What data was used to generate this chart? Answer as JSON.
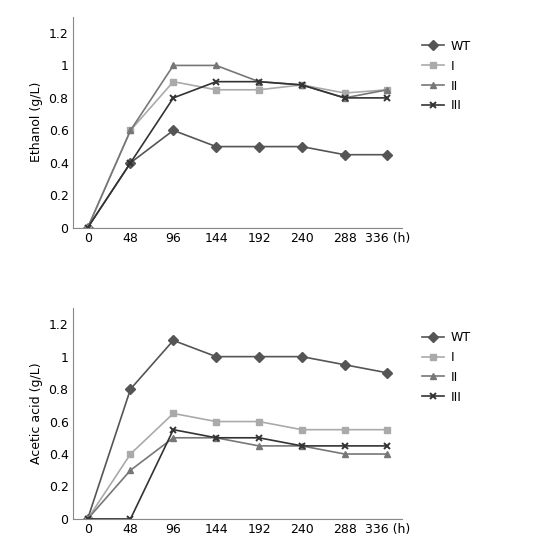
{
  "x": [
    0,
    48,
    96,
    144,
    192,
    240,
    288,
    336
  ],
  "ethanol": {
    "WT": [
      0,
      0.4,
      0.6,
      0.5,
      0.5,
      0.5,
      0.45,
      0.45
    ],
    "I": [
      0,
      0.6,
      0.9,
      0.85,
      0.85,
      0.88,
      0.83,
      0.85
    ],
    "II": [
      0,
      0.6,
      1.0,
      1.0,
      0.9,
      0.88,
      0.8,
      0.85
    ],
    "III": [
      0,
      0.4,
      0.8,
      0.9,
      0.9,
      0.88,
      0.8,
      0.8
    ]
  },
  "acetic_acid": {
    "WT": [
      0,
      0.8,
      1.1,
      1.0,
      1.0,
      1.0,
      0.95,
      0.9
    ],
    "I": [
      0,
      0.4,
      0.65,
      0.6,
      0.6,
      0.55,
      0.55,
      0.55
    ],
    "II": [
      0,
      0.3,
      0.5,
      0.5,
      0.45,
      0.45,
      0.4,
      0.4
    ],
    "III": [
      0,
      0.0,
      0.55,
      0.5,
      0.5,
      0.45,
      0.45,
      0.45
    ]
  },
  "colors": {
    "WT": "#555555",
    "I": "#aaaaaa",
    "II": "#777777",
    "III": "#333333"
  },
  "markers": {
    "WT": "D",
    "I": "s",
    "II": "^",
    "III": "x"
  },
  "markersize": 5,
  "linewidth": 1.2,
  "ylabel_ethanol": "Ethanol (g/L)",
  "ylabel_acetic": "Acetic acid (g/L)",
  "ylim": [
    0,
    1.3
  ],
  "yticks": [
    0,
    0.2,
    0.4,
    0.6,
    0.8,
    1.0,
    1.2
  ],
  "ytick_labels": [
    "0",
    "0.2",
    "0.4",
    "0.6",
    "0.8",
    "1",
    "1.2"
  ],
  "xticks": [
    0,
    48,
    96,
    144,
    192,
    240,
    288,
    336
  ],
  "xtick_labels": [
    "0",
    "48",
    "96",
    "144",
    "192",
    "240",
    "288",
    "336 (h)"
  ],
  "legend_labels": [
    "WT",
    "I",
    "II",
    "III"
  ],
  "background_color": "#ffffff"
}
